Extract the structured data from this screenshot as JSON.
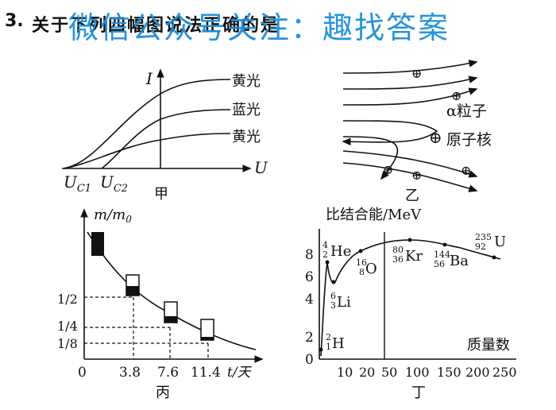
{
  "question": {
    "number": "3.",
    "text": "关于下列四幅图说法正确的是"
  },
  "watermark": "微信公众号关注：趣找答案",
  "figure_jia": {
    "caption": "甲",
    "y_axis": "I",
    "x_axis": "U",
    "curve_labels": [
      "黄光",
      "蓝光",
      "黄光"
    ],
    "x_ticks": [
      "U",
      "C1",
      "U",
      "C2"
    ]
  },
  "figure_yi": {
    "caption": "乙",
    "alpha_label": "α粒子",
    "nucleus_label": "原子核",
    "nucleus_symbol": "⊕"
  },
  "figure_bing": {
    "caption": "丙",
    "y_axis": "m/m",
    "y_axis_sub": "0",
    "x_axis": "t/天",
    "y_ticks": [
      "1/2",
      "1/4",
      "1/8"
    ],
    "x_ticks": [
      "0",
      "3.8",
      "7.6",
      "11.4"
    ]
  },
  "figure_ding": {
    "caption": "丁",
    "y_axis": "比结合能/MeV",
    "x_axis": "质量数",
    "y_ticks": [
      "0",
      "2",
      "4",
      "6",
      "8"
    ],
    "x_ticks": [
      "10",
      "20",
      "50",
      "100",
      "150",
      "200",
      "250"
    ],
    "nuclides": [
      {
        "mass": "4",
        "charge": "2",
        "symbol": "He"
      },
      {
        "mass": "16",
        "charge": "8",
        "symbol": "O"
      },
      {
        "mass": "6",
        "charge": "3",
        "symbol": "Li"
      },
      {
        "mass": "2",
        "charge": "1",
        "symbol": "H"
      },
      {
        "mass": "80",
        "charge": "36",
        "symbol": "Kr"
      },
      {
        "mass": "144",
        "charge": "56",
        "symbol": "Ba"
      },
      {
        "mass": "235",
        "charge": "92",
        "symbol": "U"
      }
    ]
  }
}
